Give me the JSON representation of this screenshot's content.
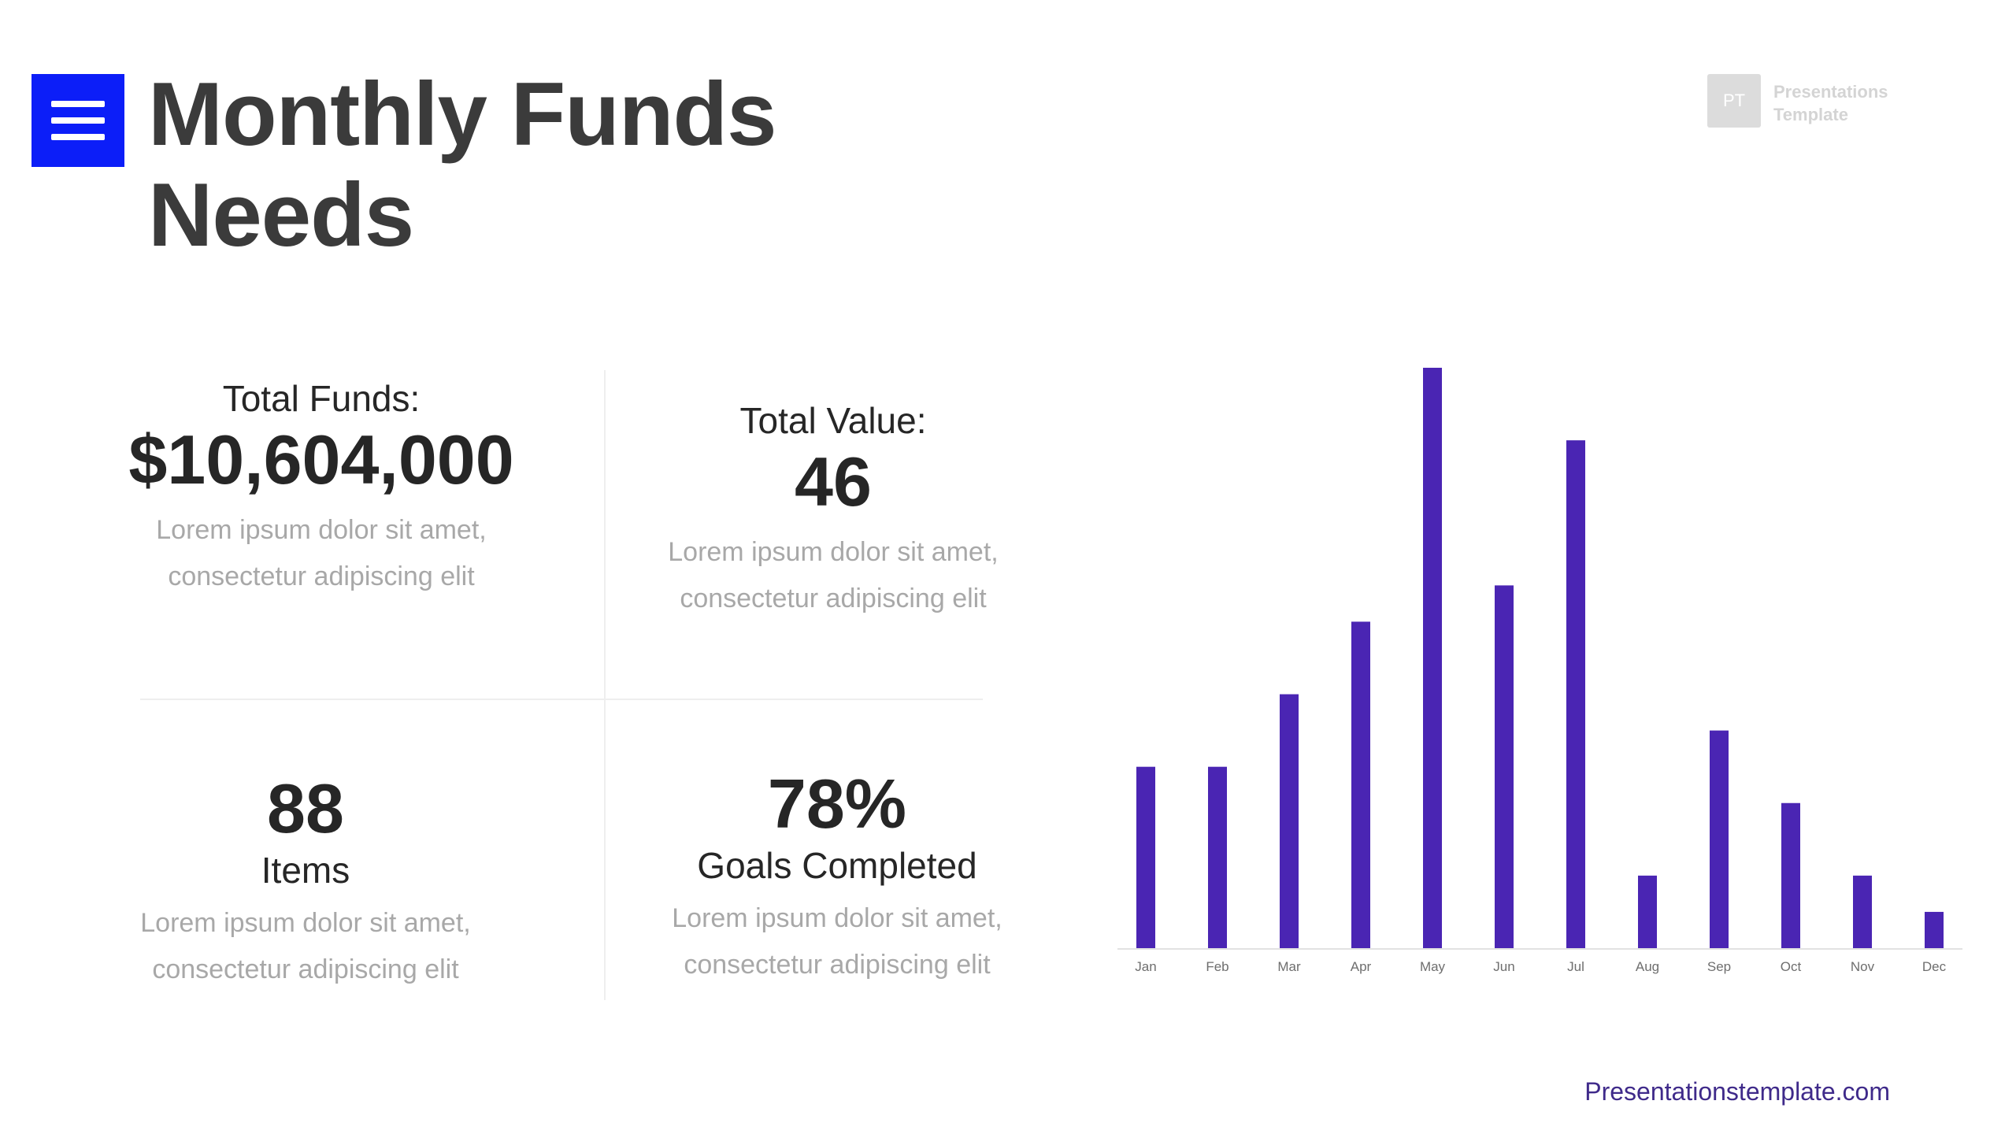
{
  "header": {
    "title": "Monthly Funds Needs",
    "logo_initials": "PT",
    "logo_line1": "Presentations",
    "logo_line2": "Template"
  },
  "stats": {
    "total_funds": {
      "label": "Total Funds:",
      "value": "$10,604,000",
      "desc_line1": "Lorem ipsum dolor sit amet,",
      "desc_line2": "consectetur adipiscing elit"
    },
    "total_value": {
      "label": "Total Value:",
      "value": "46",
      "desc_line1": "Lorem ipsum dolor sit amet,",
      "desc_line2": "consectetur adipiscing elit"
    },
    "items": {
      "value": "88",
      "label": "Items",
      "desc_line1": "Lorem ipsum dolor sit amet,",
      "desc_line2": "consectetur adipiscing elit"
    },
    "goals": {
      "value": "78%",
      "label": "Goals Completed",
      "desc_line1": "Lorem ipsum dolor sit amet,",
      "desc_line2": "consectetur adipiscing elit"
    }
  },
  "footer": {
    "link": "Presentationstemplate.com"
  },
  "colors": {
    "accent": "#0c1ef8",
    "bar": "#4a25b3",
    "footer_link": "#3f2a8a"
  },
  "chart_data": {
    "type": "bar",
    "categories": [
      "Jan",
      "Feb",
      "Mar",
      "Apr",
      "May",
      "Jun",
      "Jul",
      "Aug",
      "Sep",
      "Oct",
      "Nov",
      "Dec"
    ],
    "values": [
      5,
      5,
      7,
      9,
      16,
      10,
      14,
      2,
      6,
      4,
      2,
      1
    ],
    "ylim": [
      0,
      16
    ],
    "grid": false,
    "legend": "none"
  }
}
